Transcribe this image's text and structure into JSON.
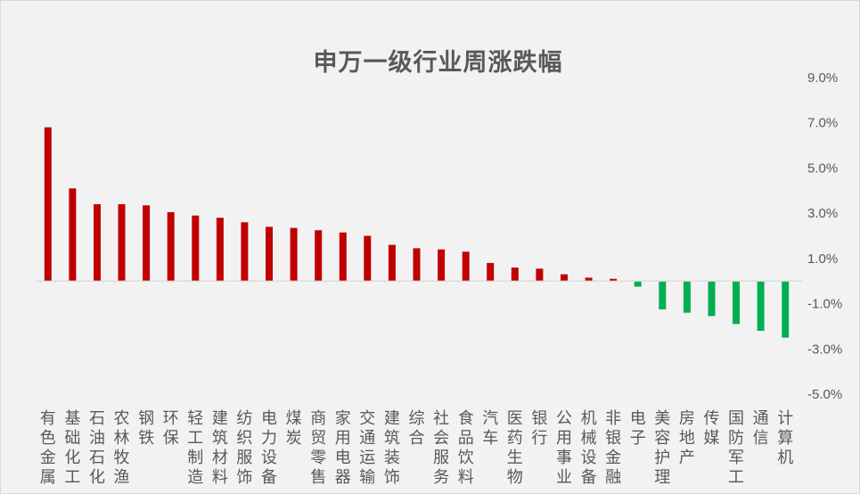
{
  "chart_data": {
    "type": "bar",
    "title": "申万一级行业周涨跌幅",
    "xlabel": "",
    "ylabel": "",
    "ylim": [
      -5,
      9
    ],
    "yticks": [
      "9.0%",
      "7.0%",
      "5.0%",
      "3.0%",
      "1.0%",
      "-1.0%",
      "-3.0%",
      "-5.0%"
    ],
    "ytick_values": [
      9,
      7,
      5,
      3,
      1,
      -1,
      -3,
      -5
    ],
    "value_unit": "%",
    "grid": false,
    "legend": "none",
    "colors": {
      "positive": "#c00000",
      "negative": "#00b050",
      "axis": "#d9d9d9",
      "text": "#595959"
    },
    "categories": [
      "有色金属",
      "基础化工",
      "石油石化",
      "农林牧渔",
      "钢铁",
      "环保",
      "轻工制造",
      "建筑材料",
      "纺织服饰",
      "电力设备",
      "煤炭",
      "商贸零售",
      "家用电器",
      "交通运输",
      "建筑装饰",
      "综合",
      "社会服务",
      "食品饮料",
      "汽车",
      "医药生物",
      "银行",
      "公用事业",
      "机械设备",
      "非银金融",
      "电子",
      "美容护理",
      "房地产",
      "传媒",
      "国防军工",
      "通信",
      "计算机"
    ],
    "values": [
      6.8,
      4.1,
      3.4,
      3.4,
      3.35,
      3.05,
      2.9,
      2.8,
      2.6,
      2.4,
      2.35,
      2.25,
      2.15,
      2.0,
      1.6,
      1.45,
      1.4,
      1.3,
      0.8,
      0.6,
      0.55,
      0.3,
      0.15,
      0.1,
      -0.25,
      -1.25,
      -1.4,
      -1.55,
      -1.9,
      -2.2,
      -2.5
    ]
  }
}
